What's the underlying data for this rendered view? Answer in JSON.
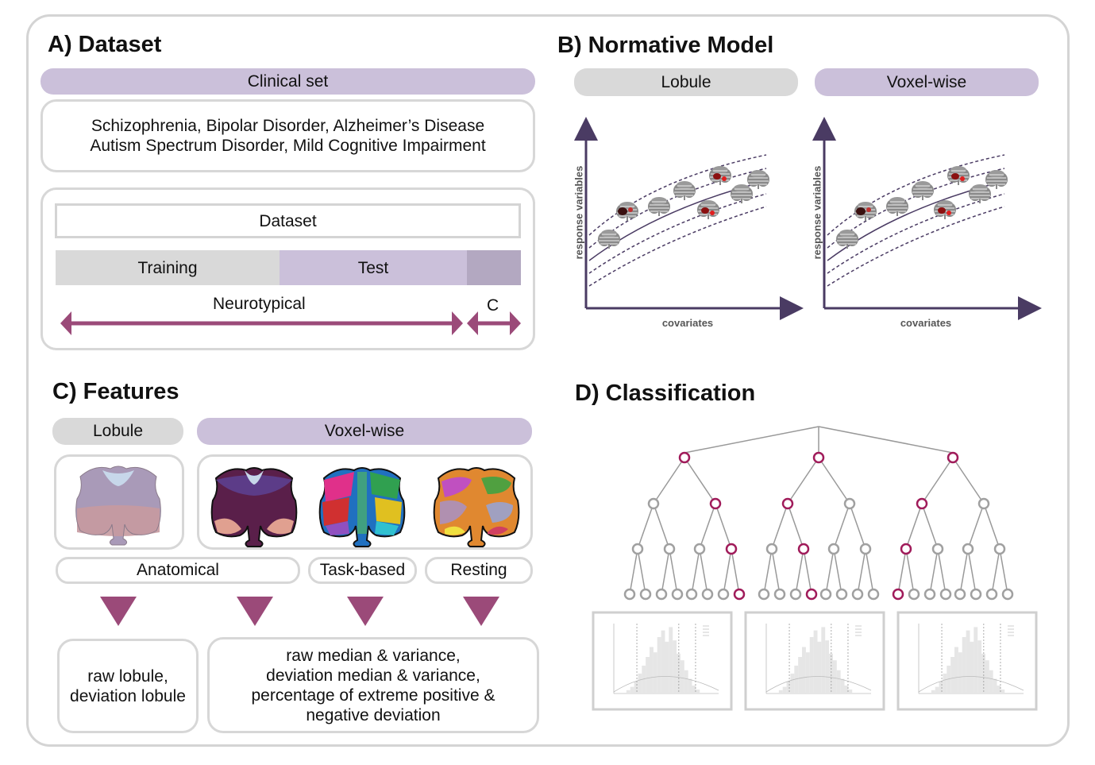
{
  "panels": {
    "a": {
      "title": "A) Dataset",
      "clinical_set": "Clinical set",
      "disorders_line1": "Schizophrenia, Bipolar Disorder, Alzheimer’s Disease",
      "disorders_line2": "Autism Spectrum Disorder, Mild Cognitive Impairment",
      "dataset": "Dataset",
      "training": "Training",
      "test": "Test",
      "neurotypical": "Neurotypical",
      "c": "C"
    },
    "b": {
      "title": "B) Normative Model",
      "lobule": "Lobule",
      "voxelwise": "Voxel-wise",
      "ylabel": "response variables",
      "xlabel": "covariates"
    },
    "c": {
      "title": "C) Features",
      "lobule": "Lobule",
      "voxelwise": "Voxel-wise",
      "anatomical": "Anatomical",
      "task_based": "Task-based",
      "resting": "Resting",
      "lobule_features_line1": "raw lobule,",
      "lobule_features_line2": "deviation lobule",
      "voxel_features_line1": "raw median & variance,",
      "voxel_features_line2": "deviation median & variance,",
      "voxel_features_line3": "percentage of extreme positive &",
      "voxel_features_line4": "negative deviation"
    },
    "d": {
      "title": "D) Classification"
    }
  },
  "colors": {
    "purple_pill": "#cbc0da",
    "gray_pill": "#d9d9d9",
    "arrow": "#9b4a79",
    "axis": "#4a3b63",
    "highlight_node": "#a01b5a",
    "node": "#a0a0a0"
  }
}
